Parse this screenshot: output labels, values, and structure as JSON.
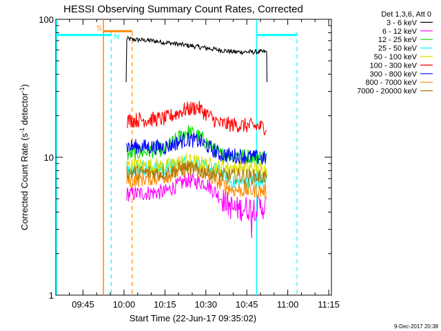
{
  "chart_data": {
    "type": "line",
    "title": "HESSI Observing Summary Count Rates, Corrected",
    "ylabel_main": "Corrected Count Rate (s",
    "ylabel_sup1": "-1",
    "ylabel_mid": " detector",
    "ylabel_sup2": "-1",
    "ylabel_end": ")",
    "xlabel": "Start Time (22-Jun-17 09:35:02)",
    "yscale": "log",
    "ylim": [
      1,
      100
    ],
    "y_ticks": [
      {
        "value": 1,
        "label": "1"
      },
      {
        "value": 10,
        "label": "10"
      },
      {
        "value": 100,
        "label": "100"
      }
    ],
    "x_ticks": [
      "09:45",
      "10:00",
      "10:15",
      "10:30",
      "10:45",
      "11:00",
      "11:15"
    ],
    "x_tick_minutes": [
      45,
      60,
      75,
      90,
      105,
      120,
      135
    ],
    "xlim_minutes": [
      35.03,
      136
    ],
    "data_span_minutes": [
      60.8,
      112.4
    ],
    "legend_header": "Det 1,3,6, Att 0",
    "series": [
      {
        "name": "3 - 6 keV",
        "color": "#000000",
        "profile": [
          [
            60.8,
            35
          ],
          [
            61.0,
            72
          ],
          [
            70,
            70
          ],
          [
            80,
            66
          ],
          [
            90,
            62
          ],
          [
            100,
            58
          ],
          [
            112.4,
            58
          ]
        ]
      },
      {
        "name": "6 - 12 keV",
        "color": "#ff00ff",
        "profile": [
          [
            61.0,
            5.4
          ],
          [
            75,
            5.6
          ],
          [
            83,
            6.8
          ],
          [
            90,
            6.5
          ],
          [
            95,
            5.2
          ],
          [
            100,
            4.2
          ],
          [
            112.4,
            4.4
          ]
        ]
      },
      {
        "name": "12 - 25 keV",
        "color": "#00dd00",
        "profile": [
          [
            61.0,
            10.5
          ],
          [
            75,
            11.5
          ],
          [
            83,
            15.5
          ],
          [
            88,
            14
          ],
          [
            95,
            10.5
          ],
          [
            112.4,
            10
          ]
        ]
      },
      {
        "name": "25 - 50 keV",
        "color": "#00ffff",
        "profile": [
          [
            61.0,
            8.5
          ],
          [
            75,
            8.3
          ],
          [
            83,
            9.2
          ],
          [
            95,
            7.8
          ],
          [
            100,
            6.5
          ],
          [
            112.4,
            6.8
          ]
        ]
      },
      {
        "name": "50 - 100 keV",
        "color": "#dddd00",
        "profile": [
          [
            61.0,
            8.8
          ],
          [
            75,
            8.6
          ],
          [
            83,
            9.5
          ],
          [
            95,
            8.5
          ],
          [
            112.4,
            8.2
          ]
        ]
      },
      {
        "name": "100 - 300 keV",
        "color": "#ff0000",
        "profile": [
          [
            61.0,
            18.5
          ],
          [
            75,
            19
          ],
          [
            82,
            22
          ],
          [
            87,
            23
          ],
          [
            95,
            17.5
          ],
          [
            112.4,
            16.5
          ]
        ]
      },
      {
        "name": "300 - 800 keV",
        "color": "#0000ff",
        "profile": [
          [
            61.0,
            12
          ],
          [
            75,
            11.8
          ],
          [
            83,
            13.5
          ],
          [
            88,
            13
          ],
          [
            95,
            10.5
          ],
          [
            112.4,
            9.8
          ]
        ]
      },
      {
        "name": "800 - 7000 keV",
        "color": "#ff8800",
        "profile": [
          [
            61.0,
            6.8
          ],
          [
            75,
            7.2
          ],
          [
            83,
            8.3
          ],
          [
            90,
            7.6
          ],
          [
            95,
            6.5
          ],
          [
            100,
            5.8
          ],
          [
            112.4,
            5.7
          ]
        ]
      },
      {
        "name": "7000 - 20000 keV",
        "color": "#aa7700",
        "profile": [
          [
            61.0,
            7.8
          ],
          [
            75,
            7.7
          ],
          [
            83,
            8.4
          ],
          [
            95,
            7.4
          ],
          [
            112.4,
            7.2
          ]
        ]
      }
    ],
    "annotations": [
      {
        "label": "S",
        "color": "#ff8800",
        "vline_minute": 52.5,
        "dashed_end_minute": 63.0,
        "bar_level": 82
      },
      {
        "label": "N",
        "color": "#00ffff",
        "vline_minute": 55.3,
        "dashed_end_minute": 123.4,
        "bar_level": 77
      }
    ],
    "night_periods": [
      {
        "color": "#00ffff",
        "start_minute": 35.03,
        "end_minute": 55.3,
        "level": 77
      },
      {
        "color": "#00ffff",
        "start_minute": 108.6,
        "end_minute": 123.4,
        "level": 77
      }
    ],
    "saa_periods": [
      {
        "color": "#ff8800",
        "start_minute": 52.5,
        "end_minute": 63.0,
        "level": 82
      }
    ],
    "vertical_solid_lines": [
      {
        "minute": 52.5,
        "color": "#ff8800"
      },
      {
        "minute": 108.6,
        "color": "#00ffff"
      }
    ],
    "vertical_dashed_lines": [
      {
        "minute": 55.3,
        "color": "#00ffff"
      },
      {
        "minute": 63.0,
        "color": "#ff8800"
      },
      {
        "minute": 123.4,
        "color": "#00ffff"
      }
    ],
    "footer_date": "9-Dec-2017 20:38"
  }
}
